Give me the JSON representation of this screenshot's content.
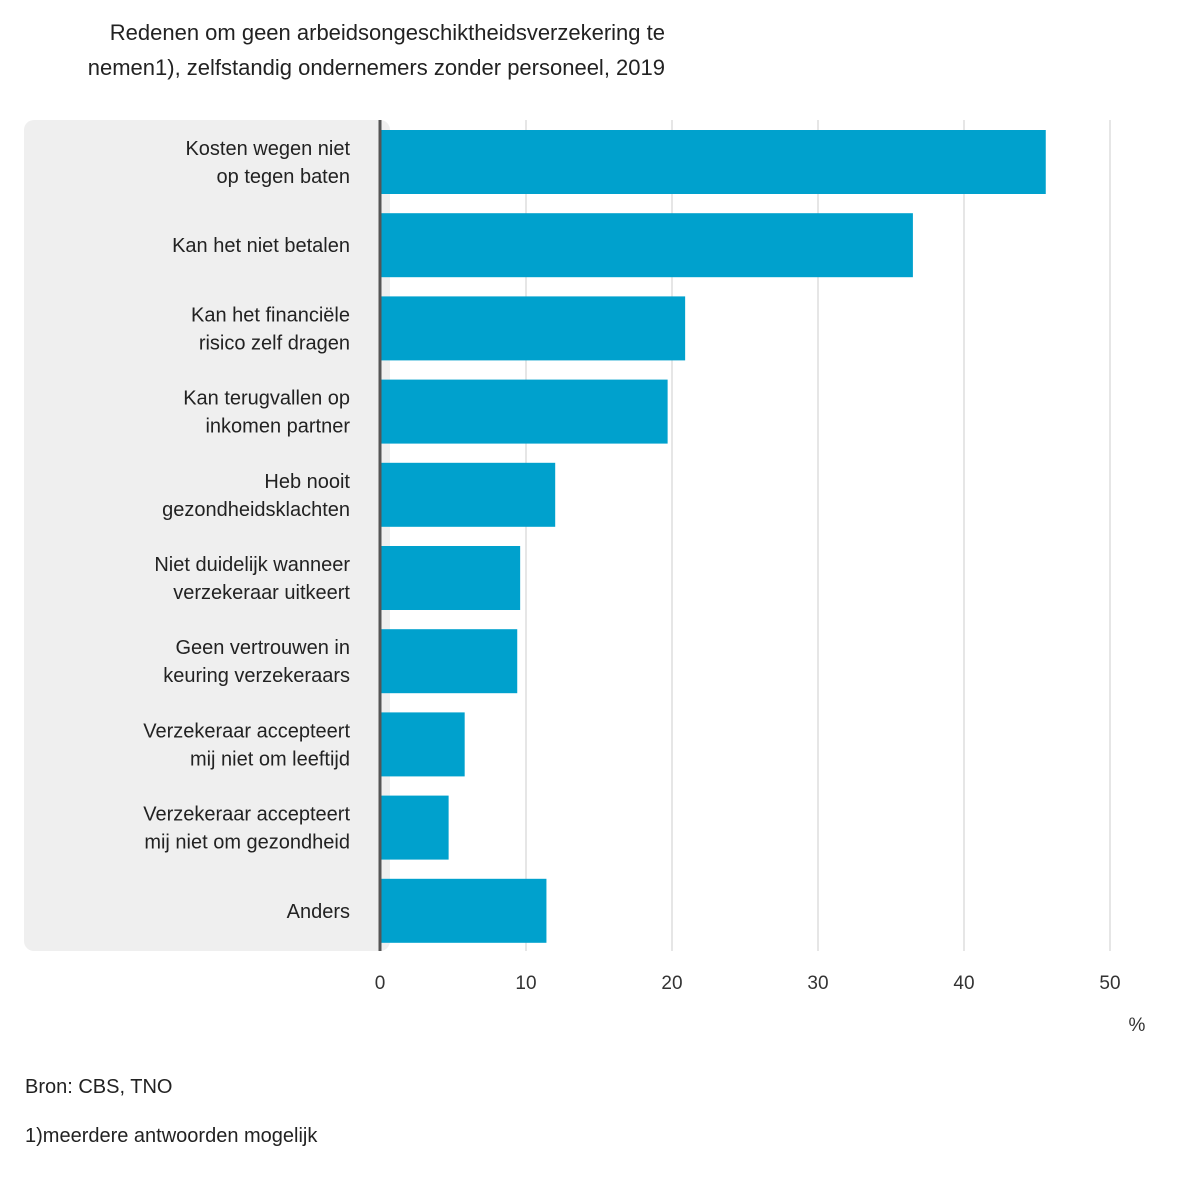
{
  "title_lines": [
    "Redenen om geen arbeidsongeschiktheidsverzekering te",
    "nemen1), zelfstandig ondernemers zonder personeel, 2019"
  ],
  "chart_data": {
    "type": "bar",
    "orientation": "horizontal",
    "title": "Redenen om geen arbeidsongeschiktheidsverzekering te nemen1), zelfstandig ondernemers zonder personeel, 2019",
    "categories": [
      [
        "Kosten wegen niet",
        "op tegen baten"
      ],
      [
        "Kan het niet betalen"
      ],
      [
        "Kan het financiële",
        "risico zelf dragen"
      ],
      [
        "Kan terugvallen op",
        "inkomen partner"
      ],
      [
        "Heb nooit",
        "gezondheidsklachten"
      ],
      [
        "Niet duidelijk wanneer",
        "verzekeraar uitkeert"
      ],
      [
        "Geen vertrouwen in",
        "keuring verzekeraars"
      ],
      [
        "Verzekeraar accepteert",
        "mij niet om leeftijd"
      ],
      [
        "Verzekeraar accepteert",
        "mij niet om gezondheid"
      ],
      [
        "Anders"
      ]
    ],
    "values": [
      45.6,
      36.5,
      20.9,
      19.7,
      12.0,
      9.6,
      9.4,
      5.8,
      4.7,
      11.4
    ],
    "xlim": [
      0,
      50
    ],
    "xticks": [
      "0",
      "10",
      "20",
      "30",
      "40",
      "50"
    ],
    "xlabel": "%",
    "grid": true,
    "bar_color": "#00a1cd",
    "label_panel_color": "#efefef",
    "gridline_color": "#cccccc",
    "axis_line_color": "#555555"
  },
  "source": "Bron: CBS, TNO",
  "footnote": "1)meerdere antwoorden mogelijk"
}
